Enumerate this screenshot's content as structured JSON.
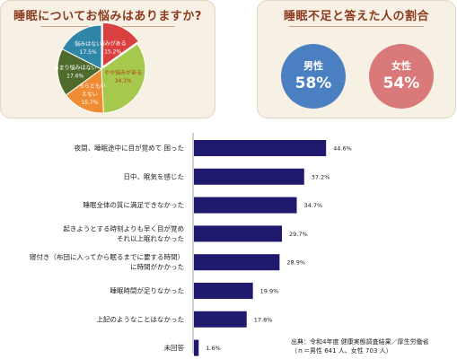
{
  "pie_panel": {
    "title": "睡眠についてお悩みはありますか?"
  },
  "ratio_panel": {
    "title": "睡眠不足と答えた人の割合",
    "male": {
      "label": "男性",
      "value": "58%",
      "color": "#4a7fc1"
    },
    "female": {
      "label": "女性",
      "value": "54%",
      "color": "#d9797a"
    }
  },
  "source": {
    "line1": "出典：令和4年度 健康実態調査結果／厚生労働省",
    "line2": "（ｎ＝男性 641 人、女性 703 人）"
  },
  "chart_data": [
    {
      "type": "pie",
      "title": "睡眠についてお悩みはありますか?",
      "slices": [
        {
          "label": "悩みがある",
          "value": 15.2,
          "color": "#d8413f"
        },
        {
          "label": "やや悩みがある",
          "value": 34.1,
          "color": "#a6c84c"
        },
        {
          "label": "どちらともいえない",
          "value": 15.7,
          "color": "#f08c33"
        },
        {
          "label": "あまり悩みはない",
          "value": 17.6,
          "color": "#4f6b2c"
        },
        {
          "label": "悩みはない",
          "value": 17.5,
          "color": "#2f86a6"
        }
      ],
      "display": [
        {
          "lines": [
            "悩みがある",
            "15.2%"
          ],
          "text_color": "#ffffff"
        },
        {
          "lines": [
            "やや悩みがある",
            "34.1%"
          ],
          "text_color": "#b04010"
        },
        {
          "lines": [
            "どちらともい",
            "えない",
            "15.7%"
          ],
          "text_color": "#ffffff"
        },
        {
          "lines": [
            "あまり悩みはない",
            "17.6%"
          ],
          "text_color": "#ffffff"
        },
        {
          "lines": [
            "悩みはない",
            "17.5%"
          ],
          "text_color": "#ffffff"
        }
      ]
    },
    {
      "type": "bar",
      "orientation": "horizontal",
      "bar_color": "#1f1a6e",
      "xlim": [
        0,
        50
      ],
      "categories": [
        [
          "夜間、睡眠途中に目が覚めて 困った"
        ],
        [
          "日中、眠気を感じた"
        ],
        [
          "睡眠全体の質に満足できなかった"
        ],
        [
          "起きようとする時刻よりも早く目が覚め",
          "それ以上眠れなかった"
        ],
        [
          "寝付き（布団に入ってから眠るまでに要する時間）",
          "に時間がかかった"
        ],
        [
          "睡眠時間が足りなかった"
        ],
        [
          "上記のようなことはなかった"
        ],
        [
          "未回答"
        ]
      ],
      "values": [
        44.6,
        37.2,
        34.7,
        29.7,
        28.9,
        19.9,
        17.8,
        1.6
      ],
      "value_labels": [
        "44.6%",
        "37.2%",
        "34.7%",
        "29.7%",
        "28.9%",
        "19.9%",
        "17.8%",
        "1.6%"
      ]
    }
  ]
}
